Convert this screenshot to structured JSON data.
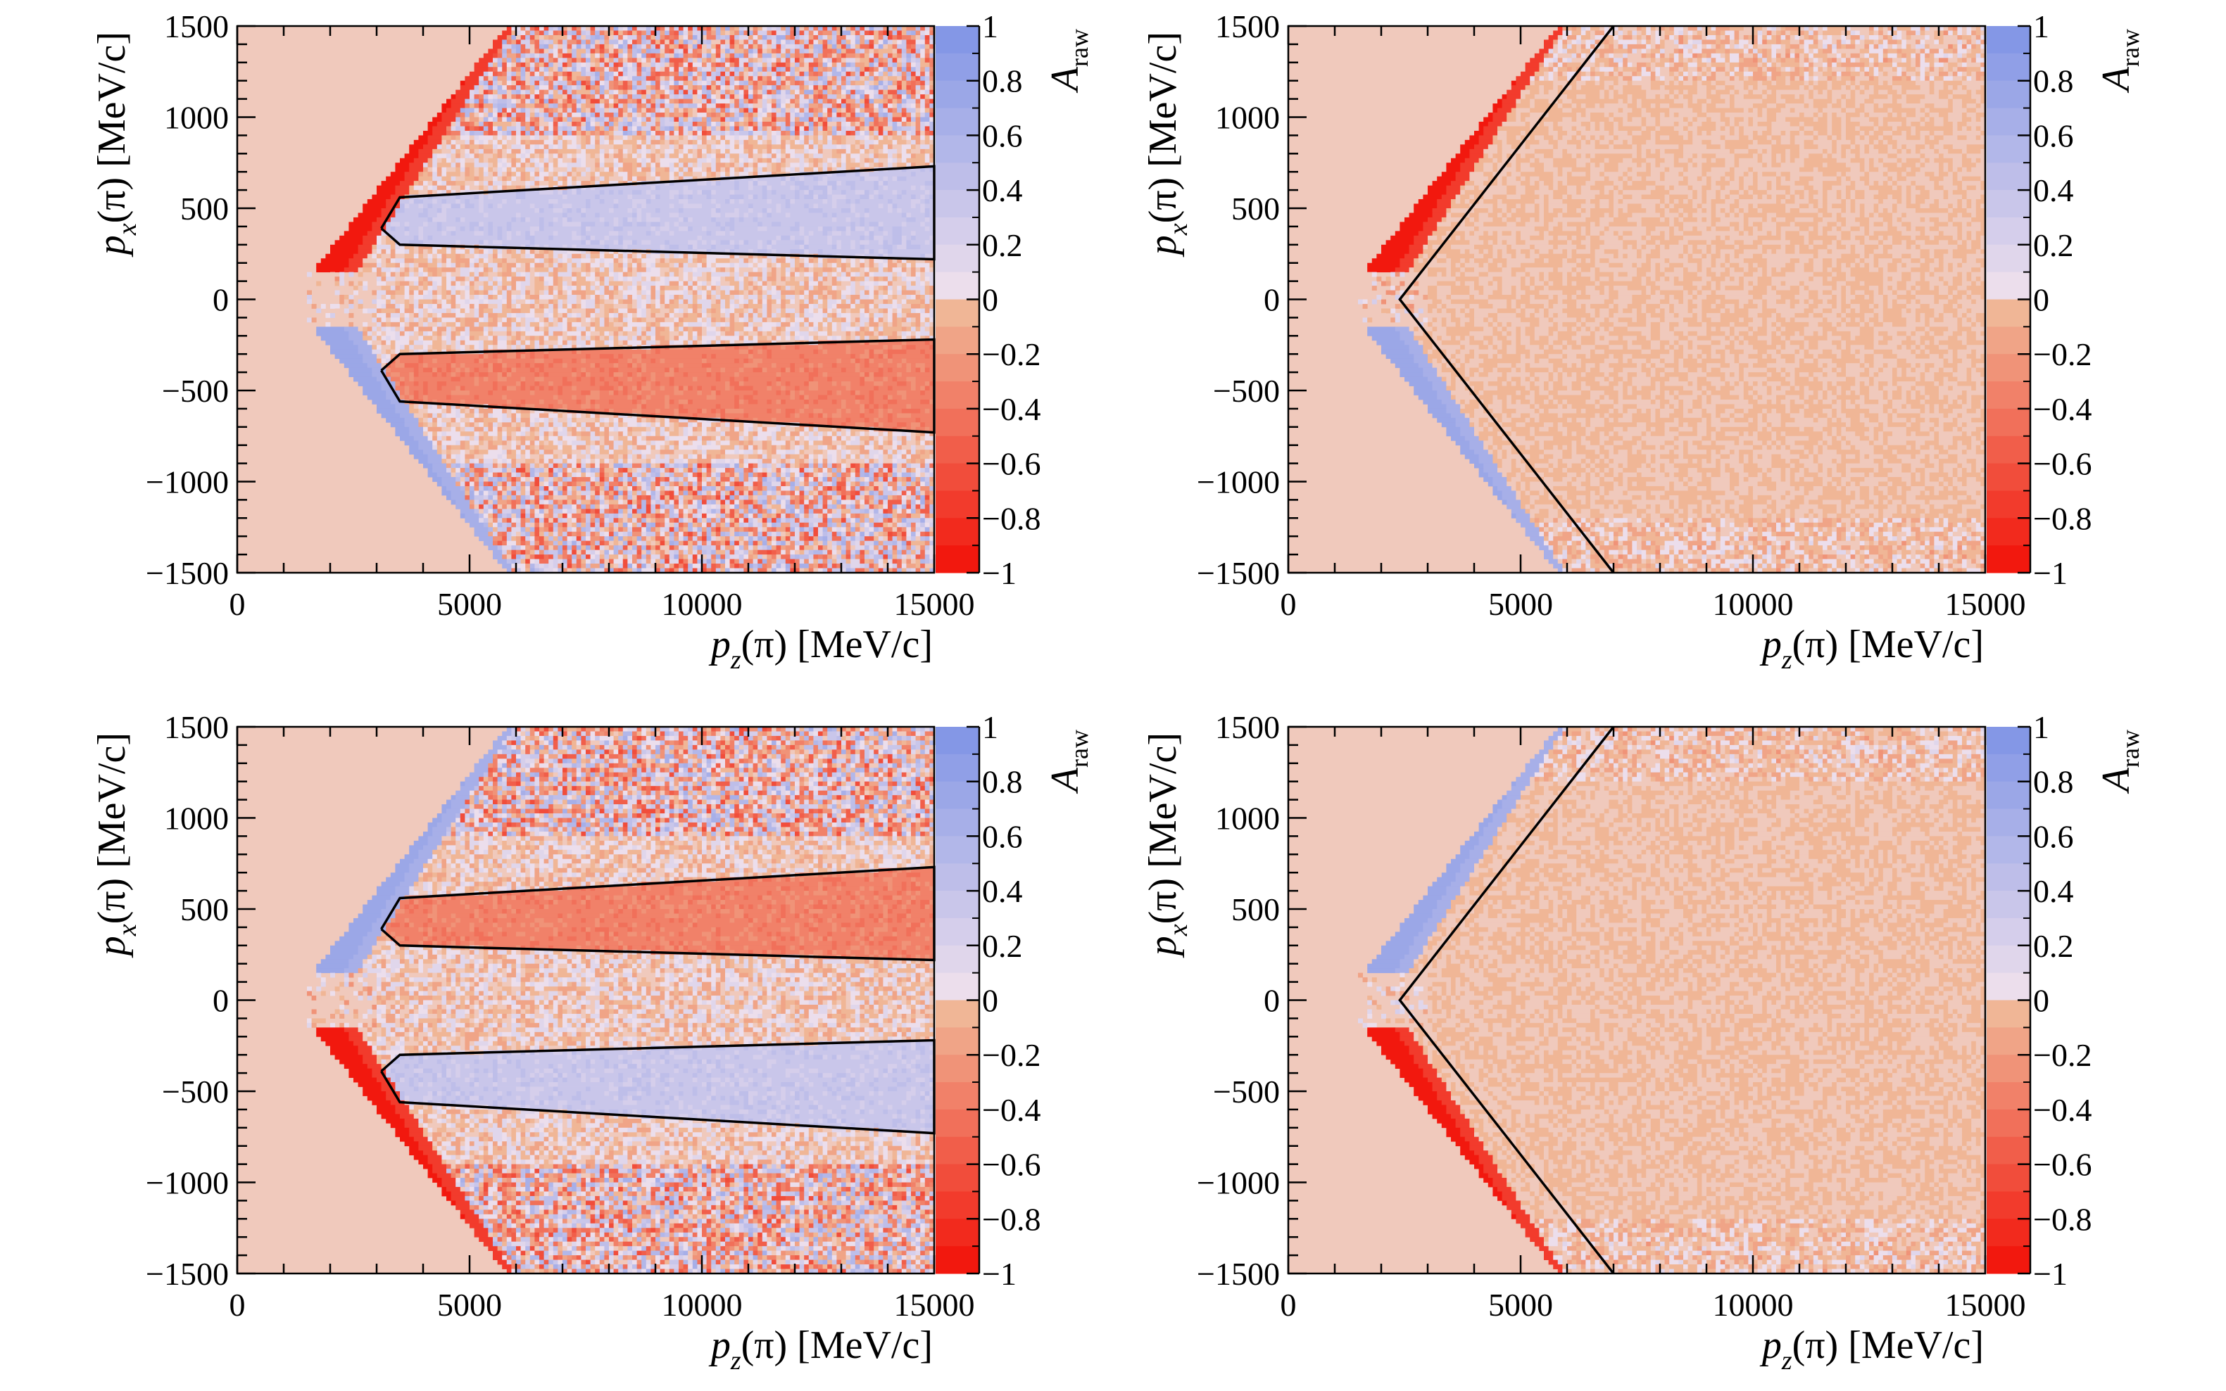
{
  "colors": {
    "background": "#ffffff",
    "positive_full": "#8497e6",
    "negative_full": "#f2180e",
    "neutral": "#f0c9bc",
    "frame": "#000000"
  },
  "colorbar": {
    "title_main": "A",
    "title_sub": "raw",
    "tick_labels": [
      "1",
      "0.8",
      "0.6",
      "0.4",
      "0.2",
      "0",
      "−0.2",
      "−0.4",
      "−0.6",
      "−0.8",
      "−1"
    ],
    "range": [
      -1,
      1
    ],
    "levels": [
      1,
      0.9,
      0.8,
      0.7,
      0.6,
      0.5,
      0.4,
      0.3,
      0.2,
      0.1,
      0,
      -0.1,
      -0.2,
      -0.3,
      -0.4,
      -0.5,
      -0.6,
      -0.7,
      -0.8,
      -0.9,
      -1
    ]
  },
  "axes": {
    "x_title_main": "p",
    "x_title_sub": "z",
    "x_title_rest": "(π) [MeV/c]",
    "y_title_main": "p",
    "y_title_sub": "x",
    "y_title_rest": "(π) [MeV/c]",
    "x_tick_labels": [
      "0",
      "5000",
      "10000",
      "15000"
    ],
    "y_tick_labels": [
      "1500",
      "1000",
      "500",
      "0",
      "−500",
      "−1000",
      "−1500"
    ]
  },
  "chart_data": [
    {
      "type": "heatmap",
      "panel": "top-left",
      "xlim": [
        0,
        15000
      ],
      "ylim": [
        -1500,
        1500
      ],
      "zlim": [
        -1,
        1
      ],
      "upper_edge_band_value": -1,
      "lower_edge_band_value": 0.8,
      "upper_window_value": 0.4,
      "lower_window_value": -0.4,
      "region_outlines": [
        [
          [
            3100,
            390
          ],
          [
            3500,
            560
          ],
          [
            15000,
            730
          ],
          [
            15000,
            220
          ],
          [
            3500,
            300
          ],
          [
            3100,
            390
          ]
        ],
        [
          [
            3100,
            -390
          ],
          [
            3500,
            -560
          ],
          [
            15000,
            -730
          ],
          [
            15000,
            -220
          ],
          [
            3500,
            -300
          ],
          [
            3100,
            -390
          ]
        ]
      ]
    },
    {
      "type": "heatmap",
      "panel": "top-right",
      "xlim": [
        0,
        15000
      ],
      "ylim": [
        -1500,
        1500
      ],
      "zlim": [
        -1,
        1
      ],
      "upper_edge_band_value": -1,
      "lower_edge_band_value": 0.8,
      "interior_value": -0.05,
      "region_outlines": [
        [
          [
            7000,
            1500
          ],
          [
            2400,
            0
          ],
          [
            7000,
            -1500
          ]
        ]
      ]
    },
    {
      "type": "heatmap",
      "panel": "bottom-left",
      "xlim": [
        0,
        15000
      ],
      "ylim": [
        -1500,
        1500
      ],
      "zlim": [
        -1,
        1
      ],
      "upper_edge_band_value": 0.8,
      "lower_edge_band_value": -1,
      "upper_window_value": -0.4,
      "lower_window_value": 0.4,
      "region_outlines": [
        [
          [
            3100,
            390
          ],
          [
            3500,
            560
          ],
          [
            15000,
            730
          ],
          [
            15000,
            220
          ],
          [
            3500,
            300
          ],
          [
            3100,
            390
          ]
        ],
        [
          [
            3100,
            -390
          ],
          [
            3500,
            -560
          ],
          [
            15000,
            -730
          ],
          [
            15000,
            -220
          ],
          [
            3500,
            -300
          ],
          [
            3100,
            -390
          ]
        ]
      ]
    },
    {
      "type": "heatmap",
      "panel": "bottom-right",
      "xlim": [
        0,
        15000
      ],
      "ylim": [
        -1500,
        1500
      ],
      "zlim": [
        -1,
        1
      ],
      "upper_edge_band_value": 0.8,
      "lower_edge_band_value": -1,
      "interior_value": -0.05,
      "region_outlines": [
        [
          [
            7000,
            1500
          ],
          [
            2400,
            0
          ],
          [
            7000,
            -1500
          ]
        ]
      ]
    }
  ]
}
